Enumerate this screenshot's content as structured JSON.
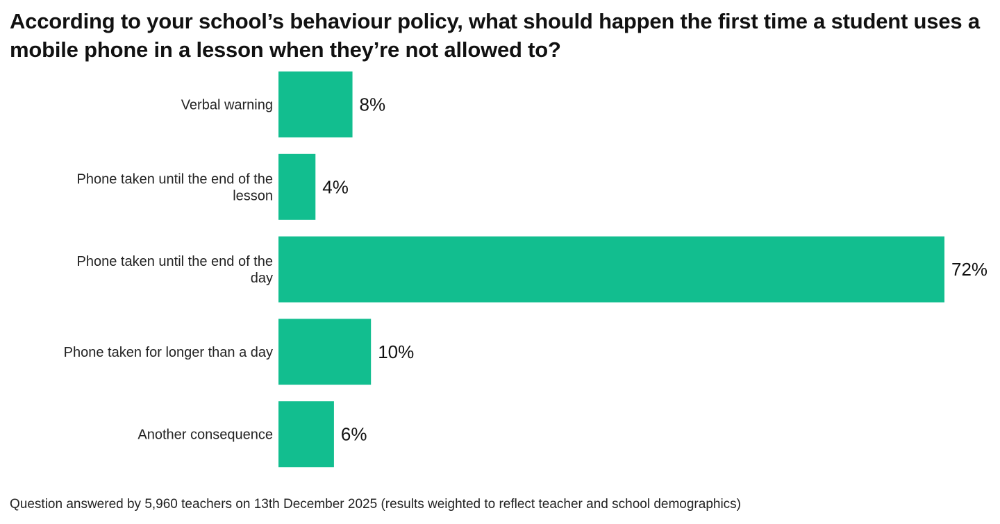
{
  "chart_data": {
    "type": "bar",
    "orientation": "horizontal",
    "title": "According to your school’s behaviour policy, what should happen the first time a student uses a mobile phone in a lesson when they’re not allowed to?",
    "categories": [
      [
        "Verbal warning"
      ],
      [
        "Phone taken until the end of the",
        "lesson"
      ],
      [
        "Phone taken until the end of the",
        "day"
      ],
      [
        "Phone taken for longer than a day"
      ],
      [
        "Another consequence"
      ]
    ],
    "values": [
      8,
      4,
      72,
      10,
      6
    ],
    "data_labels": [
      "8%",
      "4%",
      "72%",
      "10%",
      "6%"
    ],
    "xlabel": "",
    "ylabel": "",
    "xlim": [
      0,
      72
    ],
    "grid": false,
    "legend": "none",
    "bar_color": "#12BE8F"
  },
  "footnote": "Question answered by 5,960 teachers on 13th December 2025 (results weighted to reflect teacher and school demographics)"
}
